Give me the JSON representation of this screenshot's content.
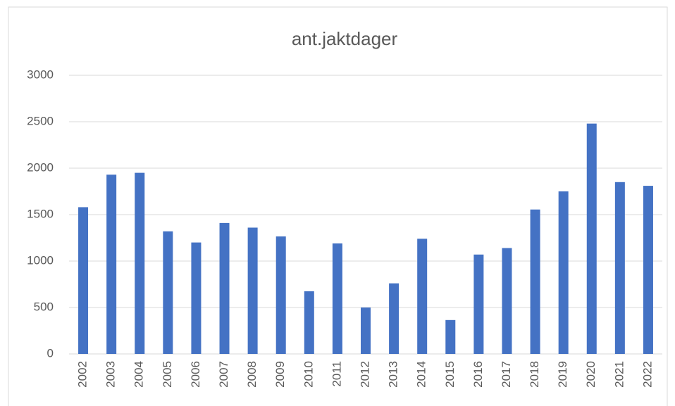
{
  "chart_data": {
    "type": "bar",
    "title": "ant.jaktdager",
    "categories": [
      "2002",
      "2003",
      "2004",
      "2005",
      "2006",
      "2007",
      "2008",
      "2009",
      "2010",
      "2011",
      "2012",
      "2013",
      "2014",
      "2015",
      "2016",
      "2017",
      "2018",
      "2019",
      "2020",
      "2021",
      "2022"
    ],
    "values": [
      1580,
      1930,
      1950,
      1320,
      1200,
      1410,
      1360,
      1265,
      675,
      1190,
      500,
      760,
      1240,
      365,
      1070,
      1140,
      1555,
      1750,
      2480,
      1850,
      1810
    ],
    "color": "#4472c4",
    "ylim": [
      0,
      3000
    ],
    "yticks": [
      0,
      500,
      1000,
      1500,
      2000,
      2500,
      3000
    ],
    "grid": true
  }
}
